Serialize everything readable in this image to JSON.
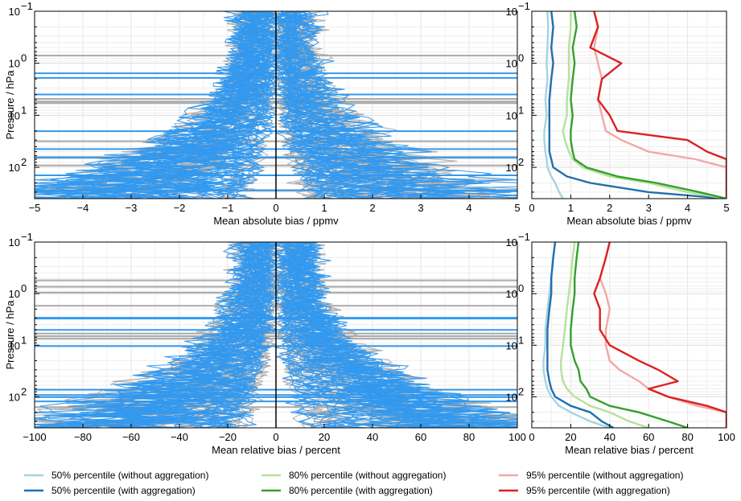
{
  "chart_data": [
    {
      "type": "line",
      "panel": "top-left",
      "xlabel": "Mean absolute bias / ppmv",
      "ylabel": "Pressure / hPa",
      "xlim": [
        -5,
        5
      ],
      "ylim": [
        400,
        0.1
      ],
      "yscale": "log",
      "xticks": [
        "−5",
        "−4",
        "−3",
        "−2",
        "−1",
        "0",
        "1",
        "2",
        "3",
        "4",
        "5"
      ],
      "grid": true,
      "series": [
        {
          "color": "#aaaaaa",
          "style": "individual profiles (without aggregation)"
        },
        {
          "color": "#3399ee",
          "style": "individual profiles (with aggregation)"
        }
      ],
      "zero_line": 0
    },
    {
      "type": "line",
      "panel": "top-right",
      "xlabel": "Mean absolute bias / ppmv",
      "xlim": [
        0,
        5
      ],
      "ylim": [
        400,
        0.1
      ],
      "yscale": "log",
      "xticks": [
        "0",
        "1",
        "2",
        "3",
        "4",
        "5"
      ],
      "grid": true,
      "pressure": [
        0.1,
        0.2,
        0.5,
        1,
        2,
        5,
        10,
        20,
        30,
        50,
        70,
        100,
        150,
        200,
        300,
        400
      ],
      "series": [
        {
          "name": "50% percentile (without aggregation)",
          "color": "#a6d4e0",
          "values": [
            0.4,
            0.42,
            0.4,
            0.38,
            0.4,
            0.35,
            0.38,
            0.32,
            0.32,
            0.35,
            0.38,
            0.4,
            0.5,
            0.6,
            0.7,
            0.8
          ]
        },
        {
          "name": "50% percentile (with aggregation)",
          "color": "#1f6fb0",
          "values": [
            0.5,
            0.55,
            0.5,
            0.55,
            0.5,
            0.45,
            0.45,
            0.45,
            0.45,
            0.45,
            0.5,
            0.55,
            0.9,
            1.5,
            3.0,
            5.0
          ]
        },
        {
          "name": "80% percentile (without aggregation)",
          "color": "#b8e09c",
          "values": [
            1.0,
            1.0,
            0.95,
            0.95,
            0.95,
            0.9,
            0.9,
            0.8,
            0.85,
            0.95,
            1.05,
            1.3,
            2.0,
            3.0,
            4.0,
            5.0
          ]
        },
        {
          "name": "80% percentile (with aggregation)",
          "color": "#33a02c",
          "values": [
            1.1,
            1.15,
            1.05,
            1.1,
            1.05,
            1.0,
            1.05,
            1.0,
            1.0,
            1.05,
            1.1,
            1.4,
            2.2,
            3.2,
            4.3,
            5.0
          ]
        },
        {
          "name": "95% percentile (without aggregation)",
          "color": "#f4a6a6",
          "values": [
            1.6,
            1.7,
            1.6,
            1.7,
            1.8,
            1.7,
            1.8,
            1.9,
            2.3,
            3.0,
            4.2,
            5.0,
            5.0,
            5.0,
            5.0,
            5.0
          ]
        },
        {
          "name": "95% percentile (with aggregation)",
          "color": "#dd2020",
          "values": [
            1.6,
            1.7,
            1.5,
            2.3,
            1.8,
            1.7,
            2.0,
            2.2,
            4.0,
            4.5,
            5.0,
            5.0,
            5.0,
            5.0,
            5.0,
            5.0
          ]
        }
      ]
    },
    {
      "type": "line",
      "panel": "bottom-left",
      "xlabel": "Mean relative bias / percent",
      "ylabel": "Pressure / hPa",
      "xlim": [
        -100,
        100
      ],
      "ylim": [
        400,
        0.1
      ],
      "yscale": "log",
      "xticks": [
        "−100",
        "−80",
        "−60",
        "−40",
        "−20",
        "0",
        "20",
        "40",
        "60",
        "80",
        "100"
      ],
      "grid": true,
      "series": [
        {
          "color": "#aaaaaa",
          "style": "individual profiles (without aggregation)"
        },
        {
          "color": "#3399ee",
          "style": "individual profiles (with aggregation)"
        }
      ],
      "zero_line": 0
    },
    {
      "type": "line",
      "panel": "bottom-right",
      "xlabel": "Mean relative bias / percent",
      "xlim": [
        0,
        100
      ],
      "ylim": [
        400,
        0.1
      ],
      "yscale": "log",
      "xticks": [
        "0",
        "20",
        "40",
        "60",
        "80",
        "100"
      ],
      "grid": true,
      "pressure": [
        0.1,
        0.2,
        0.5,
        1,
        2,
        5,
        10,
        20,
        30,
        50,
        70,
        100,
        150,
        200,
        300,
        400
      ],
      "series": [
        {
          "name": "50% percentile (without aggregation)",
          "color": "#a6d4e0",
          "values": [
            12,
            11,
            10,
            9,
            8,
            7,
            7,
            6,
            6,
            7,
            8,
            10,
            14,
            20,
            30,
            40
          ]
        },
        {
          "name": "50% percentile (with aggregation)",
          "color": "#1f6fb0",
          "values": [
            12,
            11,
            10,
            10,
            9,
            8,
            8,
            8,
            8,
            9,
            10,
            12,
            20,
            30,
            36,
            42
          ]
        },
        {
          "name": "80% percentile (without aggregation)",
          "color": "#b8e09c",
          "values": [
            22,
            21,
            20,
            19,
            18,
            17,
            16,
            15,
            15,
            16,
            18,
            22,
            30,
            40,
            50,
            60
          ]
        },
        {
          "name": "80% percentile (with aggregation)",
          "color": "#33a02c",
          "values": [
            24,
            23,
            22,
            22,
            21,
            20,
            20,
            22,
            24,
            25,
            28,
            30,
            40,
            55,
            70,
            80
          ]
        },
        {
          "name": "95% percentile (without aggregation)",
          "color": "#f4a6a6",
          "values": [
            40,
            38,
            35,
            38,
            40,
            38,
            38,
            40,
            45,
            55,
            60,
            70,
            85,
            100,
            100,
            100
          ]
        },
        {
          "name": "95% percentile (with aggregation)",
          "color": "#dd2020",
          "values": [
            40,
            38,
            35,
            32,
            35,
            35,
            40,
            55,
            65,
            75,
            60,
            70,
            90,
            100,
            100,
            100
          ]
        }
      ]
    }
  ],
  "yticks": {
    "top": [
      {
        "base": "10",
        "exp": "−1",
        "p": 0.1
      },
      {
        "base": "10",
        "exp": "0",
        "p": 1
      },
      {
        "base": "10",
        "exp": "1",
        "p": 10
      },
      {
        "base": "10",
        "exp": "2",
        "p": 100
      }
    ]
  },
  "legend": [
    {
      "label": "50% percentile (without aggregation)",
      "color": "#a6d4e0"
    },
    {
      "label": "80% percentile (without aggregation)",
      "color": "#b8e09c"
    },
    {
      "label": "95% percentile (without aggregation)",
      "color": "#f4a6a6"
    },
    {
      "label": "50% percentile (with aggregation)",
      "color": "#1f6fb0"
    },
    {
      "label": "80% percentile (with aggregation)",
      "color": "#33a02c"
    },
    {
      "label": "95% percentile (with aggregation)",
      "color": "#dd2020"
    }
  ]
}
